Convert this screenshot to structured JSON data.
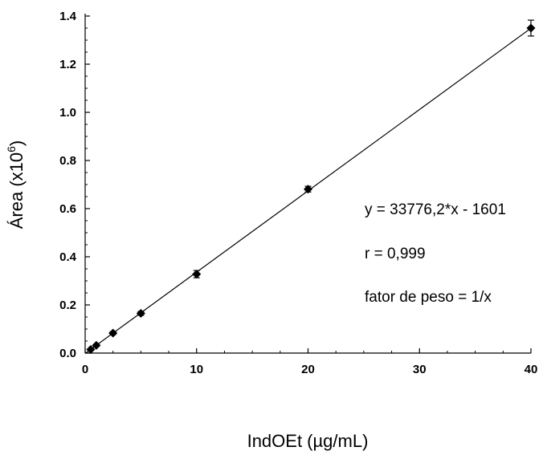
{
  "chart_data": {
    "type": "scatter",
    "xlabel": "IndOEt (µg/mL)",
    "ylabel": {
      "main": "Área (x10",
      "exponent": "6",
      "close": ")"
    },
    "xlim": [
      0,
      40
    ],
    "ylim": [
      0,
      1.4
    ],
    "x_ticks": [
      0,
      10,
      20,
      30,
      40
    ],
    "y_ticks": [
      0.0,
      0.2,
      0.4,
      0.6,
      0.8,
      1.0,
      1.2,
      1.4
    ],
    "x_tick_labels": [
      "0",
      "10",
      "20",
      "30",
      "40"
    ],
    "y_tick_labels": [
      "0.0",
      "0.2",
      "0.4",
      "0.6",
      "0.8",
      "1.0",
      "1.2",
      "1.4"
    ],
    "grid": false,
    "series": [
      {
        "marker": "diamond",
        "color": "#000000",
        "points": [
          {
            "x": 0.5,
            "y": 0.015,
            "err": 0.003
          },
          {
            "x": 1.0,
            "y": 0.032,
            "err": 0.004
          },
          {
            "x": 2.5,
            "y": 0.083,
            "err": 0.006
          },
          {
            "x": 5.0,
            "y": 0.165,
            "err": 0.008
          },
          {
            "x": 10.0,
            "y": 0.328,
            "err": 0.015
          },
          {
            "x": 20.0,
            "y": 0.681,
            "err": 0.012
          },
          {
            "x": 40.0,
            "y": 1.35,
            "err": 0.033
          }
        ]
      }
    ],
    "fit_line": {
      "x": [
        0,
        40
      ],
      "y": [
        -0.0016,
        1.3494
      ]
    },
    "annotations": [
      "y = 33776,2*x - 1601",
      "r = 0,999",
      "fator de peso = 1/x"
    ]
  }
}
